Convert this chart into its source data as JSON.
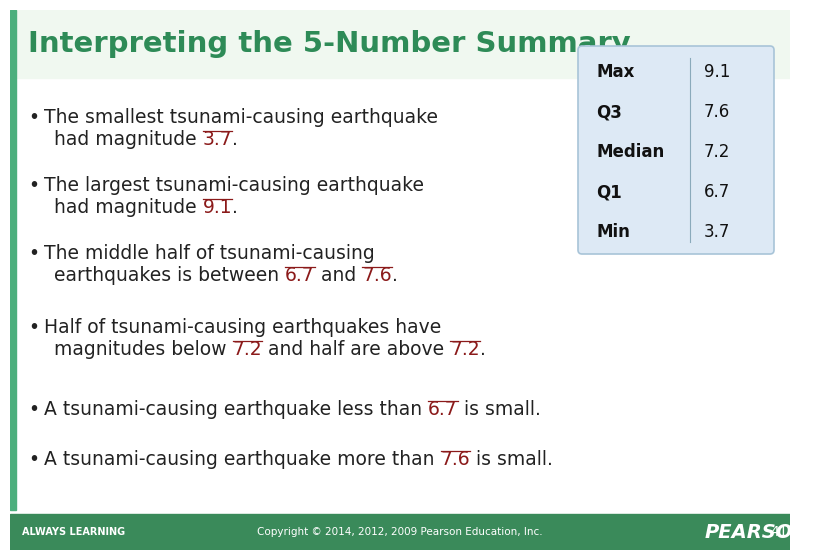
{
  "title": "Interpreting the 5-Number Summary",
  "title_color": "#2E8B57",
  "title_fontsize": 21,
  "bg_color": "#FFFFFF",
  "left_bar_color": "#4CAF7D",
  "footer_bg": "#3A8A5A",
  "footer_text_left": "ALWAYS LEARNING",
  "footer_text_center": "Copyright © 2014, 2012, 2009 Pearson Education, Inc.",
  "footer_text_right": "PEARSON",
  "footer_page": "41",
  "table_bg": "#DDE9F5",
  "table_border": "#A8C4D8",
  "table_labels": [
    "Max",
    "Q3",
    "Median",
    "Q1",
    "Min"
  ],
  "table_values": [
    "9.1",
    "7.6",
    "7.2",
    "6.7",
    "3.7"
  ],
  "highlight_color": "#8B1A1A",
  "bullet_fontsize": 13.5,
  "bullet_color": "#222222",
  "title_bg": "#F0F8F0",
  "bullets": [
    {
      "line1": "The smallest tsunami-causing earthquake",
      "line2": "had magnitude ",
      "highlight": "3.7",
      "after": "."
    },
    {
      "line1": "The largest tsunami-causing earthquake",
      "line2": "had magnitude ",
      "highlight": "9.1",
      "after": "."
    },
    {
      "line1": "The middle half of tsunami-causing",
      "line2": "earthquakes is between ",
      "highlight": "6.7",
      "mid": " and ",
      "highlight2": "7.6",
      "after": "."
    },
    {
      "line1": "Half of tsunami-causing earthquakes have",
      "line2": "magnitudes below ",
      "highlight": "7.2",
      "mid": " and half are above ",
      "highlight2": "7.2",
      "after": "."
    },
    {
      "line1": "A tsunami-causing earthquake less than ",
      "highlight": "6.7",
      "after": " is small."
    },
    {
      "line1": "A tsunami-causing earthquake more than ",
      "highlight": "7.6",
      "after": " is small."
    }
  ]
}
